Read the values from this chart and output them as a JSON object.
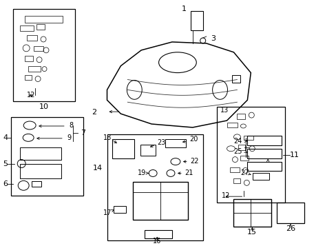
{
  "bg_color": "#ffffff",
  "line_color": "#000000",
  "text_color": "#000000",
  "fig_width": 4.89,
  "fig_height": 3.6,
  "dpi": 100
}
